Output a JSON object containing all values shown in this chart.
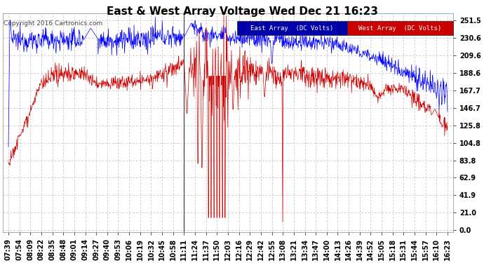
{
  "title": "East & West Array Voltage Wed Dec 21 16:23",
  "copyright": "Copyright 2016 Cartronics.com",
  "legend_east": "East Array  (DC Volts)",
  "legend_west": "West Array  (DC Volts)",
  "east_color": "#0000FF",
  "west_color": "#CC0000",
  "legend_east_bg": "#0000BB",
  "legend_west_bg": "#CC0000",
  "background_color": "#FFFFFF",
  "plot_bg_color": "#FFFFFF",
  "grid_color": "#BBBBBB",
  "yticks": [
    0.0,
    21.0,
    41.9,
    62.9,
    83.8,
    104.8,
    125.8,
    146.7,
    167.7,
    188.6,
    209.6,
    230.6,
    251.5
  ],
  "ylim": [
    -2.0,
    260.0
  ],
  "title_fontsize": 11,
  "tick_fontsize": 7,
  "x_labels": [
    "07:39",
    "07:54",
    "08:09",
    "08:22",
    "08:35",
    "08:48",
    "09:01",
    "09:14",
    "09:27",
    "09:40",
    "09:53",
    "10:06",
    "10:19",
    "10:32",
    "10:45",
    "10:58",
    "11:11",
    "11:24",
    "11:37",
    "11:50",
    "12:03",
    "12:16",
    "12:29",
    "12:42",
    "12:55",
    "13:08",
    "13:21",
    "13:34",
    "13:47",
    "14:00",
    "14:13",
    "14:26",
    "14:39",
    "14:52",
    "15:05",
    "15:18",
    "15:31",
    "15:44",
    "15:57",
    "16:10",
    "16:23"
  ],
  "vline_x": 16,
  "vline_color": "#333333"
}
